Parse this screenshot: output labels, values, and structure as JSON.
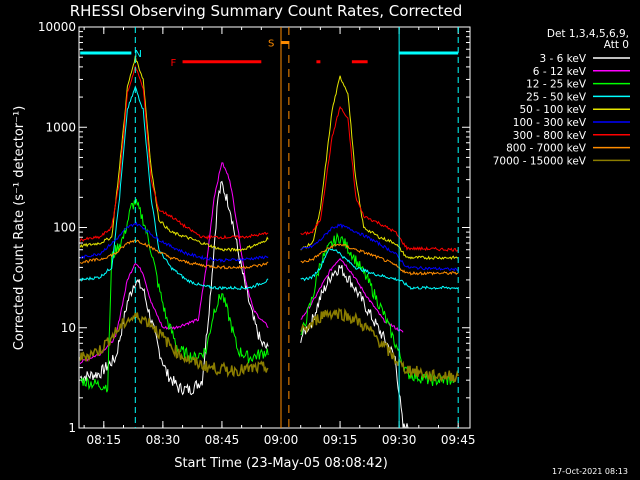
{
  "chart_data": {
    "type": "line",
    "title": "RHESSI Observing Summary Count Rates, Corrected",
    "xlabel": "Start Time (23-May-05 08:08:42)",
    "ylabel": "Corrected Count Rate (s⁻¹ detector⁻¹)",
    "y_scale": "log",
    "ylim": [
      1,
      10000
    ],
    "xlim": [
      "08:08:42",
      "09:48:00"
    ],
    "x_ticks": [
      "08:15",
      "08:30",
      "08:45",
      "09:00",
      "09:15",
      "09:30",
      "09:45"
    ],
    "y_ticks": [
      "1",
      "10",
      "100",
      "1000",
      "10000"
    ],
    "legend_header": [
      "Det 1,3,4,5,6,9,",
      "Att 0"
    ],
    "footer_date": "17-Oct-2021 08:13",
    "series": [
      {
        "name": "3 - 6 keV",
        "color": "#ffffff",
        "points": [
          [
            "08:09",
            3.2
          ],
          [
            "08:14",
            3.5
          ],
          [
            "08:18",
            5
          ],
          [
            "08:21",
            18
          ],
          [
            "08:23",
            30
          ],
          [
            "08:25",
            24
          ],
          [
            "08:27",
            12
          ],
          [
            "08:29",
            6
          ],
          [
            "08:31",
            3.5
          ],
          [
            "08:34",
            2.5
          ],
          [
            "08:37",
            2.4
          ],
          [
            "08:40",
            3
          ],
          [
            "08:42",
            20
          ],
          [
            "08:44",
            200
          ],
          [
            "08:45",
            270
          ],
          [
            "08:47",
            160
          ],
          [
            "08:49",
            60
          ],
          [
            "08:51",
            25
          ],
          [
            "08:53",
            12
          ],
          [
            "08:55",
            7
          ],
          [
            "08:57",
            6
          ],
          [
            "09:05",
            8
          ],
          [
            "09:08",
            12
          ],
          [
            "09:10",
            20
          ],
          [
            "09:13",
            35
          ],
          [
            "09:15",
            40
          ],
          [
            "09:18",
            28
          ],
          [
            "09:22",
            15
          ],
          [
            "09:26",
            8
          ],
          [
            "09:29",
            5
          ],
          [
            "09:31",
            1
          ],
          [
            "09:33",
            1
          ]
        ]
      },
      {
        "name": "6 - 12 keV",
        "color": "#ff00ff",
        "points": [
          [
            "08:09",
            4.5
          ],
          [
            "08:14",
            5.5
          ],
          [
            "08:18",
            8
          ],
          [
            "08:21",
            30
          ],
          [
            "08:23",
            45
          ],
          [
            "08:25",
            35
          ],
          [
            "08:27",
            18
          ],
          [
            "08:30",
            10
          ],
          [
            "08:33",
            10
          ],
          [
            "08:36",
            11
          ],
          [
            "08:39",
            12
          ],
          [
            "08:41",
            40
          ],
          [
            "08:43",
            200
          ],
          [
            "08:45",
            450
          ],
          [
            "08:47",
            300
          ],
          [
            "08:49",
            100
          ],
          [
            "08:51",
            30
          ],
          [
            "08:53",
            15
          ],
          [
            "08:55",
            12
          ],
          [
            "08:57",
            10
          ],
          [
            "09:05",
            12
          ],
          [
            "09:08",
            18
          ],
          [
            "09:10",
            25
          ],
          [
            "09:13",
            40
          ],
          [
            "09:15",
            50
          ],
          [
            "09:18",
            35
          ],
          [
            "09:22",
            20
          ],
          [
            "09:26",
            12
          ],
          [
            "09:29",
            10
          ],
          [
            "09:31",
            9
          ]
        ]
      },
      {
        "name": "12 - 25 keV",
        "color": "#00ff00",
        "points": [
          [
            "08:09",
            3
          ],
          [
            "08:12",
            2.8
          ],
          [
            "08:16",
            2.6
          ],
          [
            "08:17",
            50
          ],
          [
            "08:20",
            80
          ],
          [
            "08:22",
            160
          ],
          [
            "08:23",
            180
          ],
          [
            "08:25",
            120
          ],
          [
            "08:27",
            60
          ],
          [
            "08:29",
            25
          ],
          [
            "08:31",
            12
          ],
          [
            "08:34",
            6
          ],
          [
            "08:38",
            5
          ],
          [
            "08:41",
            6
          ],
          [
            "08:43",
            15
          ],
          [
            "08:45",
            22
          ],
          [
            "08:47",
            12
          ],
          [
            "08:49",
            6
          ],
          [
            "08:52",
            5
          ],
          [
            "08:55",
            5.5
          ],
          [
            "08:57",
            6
          ],
          [
            "09:05",
            8
          ],
          [
            "09:08",
            20
          ],
          [
            "09:10",
            45
          ],
          [
            "09:13",
            70
          ],
          [
            "09:15",
            80
          ],
          [
            "09:18",
            55
          ],
          [
            "09:22",
            30
          ],
          [
            "09:26",
            14
          ],
          [
            "09:29",
            7
          ],
          [
            "09:32",
            3.5
          ],
          [
            "09:38",
            3
          ],
          [
            "09:44",
            3
          ]
        ]
      },
      {
        "name": "25 - 50 keV",
        "color": "#00ffff",
        "points": [
          [
            "08:09",
            30
          ],
          [
            "08:14",
            32
          ],
          [
            "08:17",
            40
          ],
          [
            "08:19",
            200
          ],
          [
            "08:21",
            1500
          ],
          [
            "08:23",
            2500
          ],
          [
            "08:25",
            1500
          ],
          [
            "08:27",
            200
          ],
          [
            "08:29",
            60
          ],
          [
            "08:32",
            40
          ],
          [
            "08:36",
            30
          ],
          [
            "08:40",
            26
          ],
          [
            "08:44",
            25
          ],
          [
            "08:48",
            25
          ],
          [
            "08:52",
            25
          ],
          [
            "08:57",
            30
          ],
          [
            "09:05",
            30
          ],
          [
            "09:08",
            32
          ],
          [
            "09:10",
            40
          ],
          [
            "09:12",
            60
          ],
          [
            "09:14",
            60
          ],
          [
            "09:16",
            50
          ],
          [
            "09:19",
            40
          ],
          [
            "09:23",
            35
          ],
          [
            "09:27",
            32
          ],
          [
            "09:30",
            30
          ],
          [
            "09:33",
            25
          ],
          [
            "09:45",
            25
          ]
        ]
      },
      {
        "name": "50 - 100 keV",
        "color": "#e6e600",
        "points": [
          [
            "08:09",
            65
          ],
          [
            "08:14",
            70
          ],
          [
            "08:17",
            80
          ],
          [
            "08:19",
            400
          ],
          [
            "08:21",
            2500
          ],
          [
            "08:23",
            5000
          ],
          [
            "08:25",
            3000
          ],
          [
            "08:27",
            400
          ],
          [
            "08:29",
            120
          ],
          [
            "08:32",
            90
          ],
          [
            "08:36",
            80
          ],
          [
            "08:40",
            70
          ],
          [
            "08:45",
            60
          ],
          [
            "08:50",
            60
          ],
          [
            "08:55",
            70
          ],
          [
            "08:57",
            80
          ],
          [
            "09:05",
            60
          ],
          [
            "09:08",
            70
          ],
          [
            "09:10",
            150
          ],
          [
            "09:13",
            1500
          ],
          [
            "09:15",
            3200
          ],
          [
            "09:17",
            2200
          ],
          [
            "09:19",
            300
          ],
          [
            "09:21",
            100
          ],
          [
            "09:25",
            80
          ],
          [
            "09:29",
            70
          ],
          [
            "09:32",
            50
          ],
          [
            "09:45",
            50
          ]
        ]
      },
      {
        "name": "100 - 300 keV",
        "color": "#0000ff",
        "points": [
          [
            "08:09",
            50
          ],
          [
            "08:14",
            55
          ],
          [
            "08:18",
            75
          ],
          [
            "08:21",
            100
          ],
          [
            "08:23",
            110
          ],
          [
            "08:25",
            100
          ],
          [
            "08:28",
            80
          ],
          [
            "08:32",
            65
          ],
          [
            "08:36",
            55
          ],
          [
            "08:40",
            50
          ],
          [
            "08:45",
            47
          ],
          [
            "08:50",
            48
          ],
          [
            "08:55",
            50
          ],
          [
            "08:57",
            52
          ],
          [
            "09:05",
            60
          ],
          [
            "09:08",
            65
          ],
          [
            "09:10",
            75
          ],
          [
            "09:13",
            100
          ],
          [
            "09:15",
            105
          ],
          [
            "09:18",
            95
          ],
          [
            "09:22",
            80
          ],
          [
            "09:26",
            65
          ],
          [
            "09:29",
            55
          ],
          [
            "09:32",
            40
          ],
          [
            "09:45",
            38
          ]
        ]
      },
      {
        "name": "300 - 800 keV",
        "color": "#ff0000",
        "points": [
          [
            "08:09",
            75
          ],
          [
            "08:14",
            80
          ],
          [
            "08:17",
            100
          ],
          [
            "08:19",
            300
          ],
          [
            "08:21",
            2200
          ],
          [
            "08:23",
            4000
          ],
          [
            "08:25",
            2500
          ],
          [
            "08:27",
            300
          ],
          [
            "08:29",
            150
          ],
          [
            "08:32",
            130
          ],
          [
            "08:36",
            100
          ],
          [
            "08:40",
            80
          ],
          [
            "08:45",
            80
          ],
          [
            "08:50",
            80
          ],
          [
            "08:55",
            85
          ],
          [
            "08:57",
            90
          ],
          [
            "09:05",
            85
          ],
          [
            "09:08",
            90
          ],
          [
            "09:10",
            120
          ],
          [
            "09:13",
            800
          ],
          [
            "09:15",
            1600
          ],
          [
            "09:17",
            1200
          ],
          [
            "09:19",
            200
          ],
          [
            "09:21",
            130
          ],
          [
            "09:25",
            110
          ],
          [
            "09:29",
            90
          ],
          [
            "09:32",
            62
          ],
          [
            "09:45",
            60
          ]
        ]
      },
      {
        "name": "800 - 7000 keV",
        "color": "#ff8c00",
        "points": [
          [
            "08:09",
            45
          ],
          [
            "08:14",
            48
          ],
          [
            "08:18",
            55
          ],
          [
            "08:21",
            70
          ],
          [
            "08:23",
            75
          ],
          [
            "08:25",
            70
          ],
          [
            "08:28",
            60
          ],
          [
            "08:32",
            50
          ],
          [
            "08:36",
            45
          ],
          [
            "08:40",
            42
          ],
          [
            "08:45",
            40
          ],
          [
            "08:50",
            40
          ],
          [
            "08:55",
            42
          ],
          [
            "08:57",
            45
          ],
          [
            "09:05",
            45
          ],
          [
            "09:08",
            48
          ],
          [
            "09:10",
            55
          ],
          [
            "09:13",
            65
          ],
          [
            "09:15",
            68
          ],
          [
            "09:18",
            62
          ],
          [
            "09:22",
            55
          ],
          [
            "09:26",
            48
          ],
          [
            "09:29",
            42
          ],
          [
            "09:32",
            35
          ],
          [
            "09:45",
            35
          ]
        ]
      },
      {
        "name": "7000 - 15000 keV",
        "color": "#8b7d00",
        "points": [
          [
            "08:09",
            5
          ],
          [
            "08:14",
            6
          ],
          [
            "08:18",
            9
          ],
          [
            "08:21",
            12
          ],
          [
            "08:24",
            13
          ],
          [
            "08:27",
            11
          ],
          [
            "08:30",
            8
          ],
          [
            "08:34",
            5.5
          ],
          [
            "08:38",
            4.5
          ],
          [
            "08:42",
            4
          ],
          [
            "08:46",
            3.8
          ],
          [
            "08:50",
            3.8
          ],
          [
            "08:55",
            4
          ],
          [
            "08:57",
            4
          ],
          [
            "09:05",
            9
          ],
          [
            "09:08",
            11
          ],
          [
            "09:11",
            14
          ],
          [
            "09:15",
            14
          ],
          [
            "09:19",
            12
          ],
          [
            "09:23",
            9
          ],
          [
            "09:27",
            6
          ],
          [
            "09:31",
            4
          ],
          [
            "09:38",
            3.3
          ],
          [
            "09:45",
            3.3
          ]
        ]
      }
    ],
    "annotations": [
      {
        "label": "N",
        "color": "#00ffff",
        "segments": [
          [
            "08:09",
            "08:22"
          ],
          [
            "09:30",
            "09:45"
          ]
        ],
        "y": 5500,
        "vlines": [
          "08:23",
          "09:45"
        ],
        "vlines_dashed": [
          true,
          true
        ],
        "vlines_solid": [
          "09:30"
        ]
      },
      {
        "label": "F",
        "color": "#ff0000",
        "segments": [
          [
            "08:35",
            "08:55"
          ],
          [
            "09:09",
            "09:10"
          ],
          [
            "09:18",
            "09:22"
          ]
        ],
        "y": 4500
      },
      {
        "label": "S",
        "color": "#ff8c00",
        "segments": [
          [
            "09:00",
            "09:02"
          ]
        ],
        "y": 7000,
        "vlines": [
          "09:00"
        ],
        "vlines_dashed": [
          false
        ],
        "vlines_extra_dashed": [
          "09:02"
        ]
      }
    ],
    "gaps": [
      [
        "08:57",
        "09:05"
      ]
    ]
  }
}
